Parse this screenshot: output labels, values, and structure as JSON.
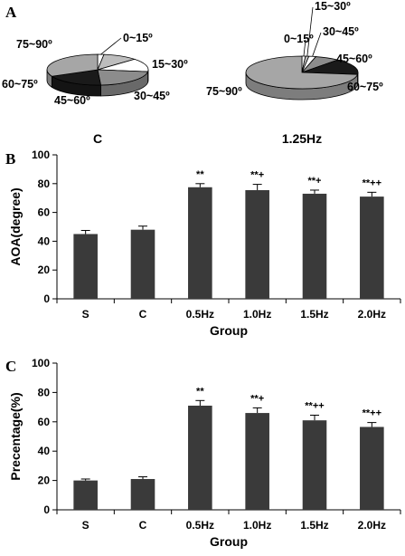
{
  "figure": {
    "panel_letters": [
      "A",
      "B",
      "C"
    ]
  },
  "chart_data": [
    {
      "type": "pie",
      "panel": "A",
      "title": "C",
      "categories": [
        "0~15º",
        "15~30º",
        "30~45º",
        "45~60º",
        "60~75º",
        "75~90º"
      ],
      "values": [
        2,
        11,
        14,
        22,
        19,
        32
      ],
      "colors": [
        "#ffffff",
        "#bdbdbd",
        "#ffffff",
        "#8c8c8c",
        "#1a1a1a",
        "#a6a6a6"
      ]
    },
    {
      "type": "pie",
      "panel": "A",
      "title": "1.25Hz",
      "categories": [
        "0~15º",
        "15~30º",
        "30~45º",
        "45~60º",
        "60~75º",
        "75~90º"
      ],
      "values": [
        1,
        1,
        2,
        7,
        16,
        73
      ],
      "colors": [
        "#ffffff",
        "#bdbdbd",
        "#ffffff",
        "#8c8c8c",
        "#1a1a1a",
        "#a6a6a6"
      ]
    },
    {
      "type": "bar",
      "panel": "B",
      "categories": [
        "S",
        "C",
        "0.5Hz",
        "1.0Hz",
        "1.5Hz",
        "2.0Hz"
      ],
      "values": [
        45,
        48,
        77.5,
        75.5,
        73,
        71
      ],
      "errors": [
        2.5,
        2.5,
        2.5,
        4,
        2.5,
        3
      ],
      "annotations": [
        "",
        "",
        "**",
        "**+",
        "**+",
        "**++"
      ],
      "xlabel": "Group",
      "ylabel": "AOA(degree)",
      "ylim": [
        0,
        100
      ],
      "yticks": [
        0,
        20,
        40,
        60,
        80,
        100
      ],
      "bar_color": "#3a3a3a"
    },
    {
      "type": "bar",
      "panel": "C",
      "categories": [
        "S",
        "C",
        "0.5Hz",
        "1.0Hz",
        "1.5Hz",
        "2.0Hz"
      ],
      "values": [
        20,
        21,
        71,
        66,
        61,
        56.5
      ],
      "errors": [
        1,
        1.5,
        3.5,
        3.5,
        3.5,
        3
      ],
      "annotations": [
        "",
        "",
        "**",
        "**+",
        "**++",
        "**++"
      ],
      "xlabel": "Group",
      "ylabel": "Precentage(%)",
      "ylim": [
        0,
        100
      ],
      "yticks": [
        0,
        20,
        40,
        60,
        80,
        100
      ],
      "bar_color": "#3a3a3a"
    }
  ]
}
